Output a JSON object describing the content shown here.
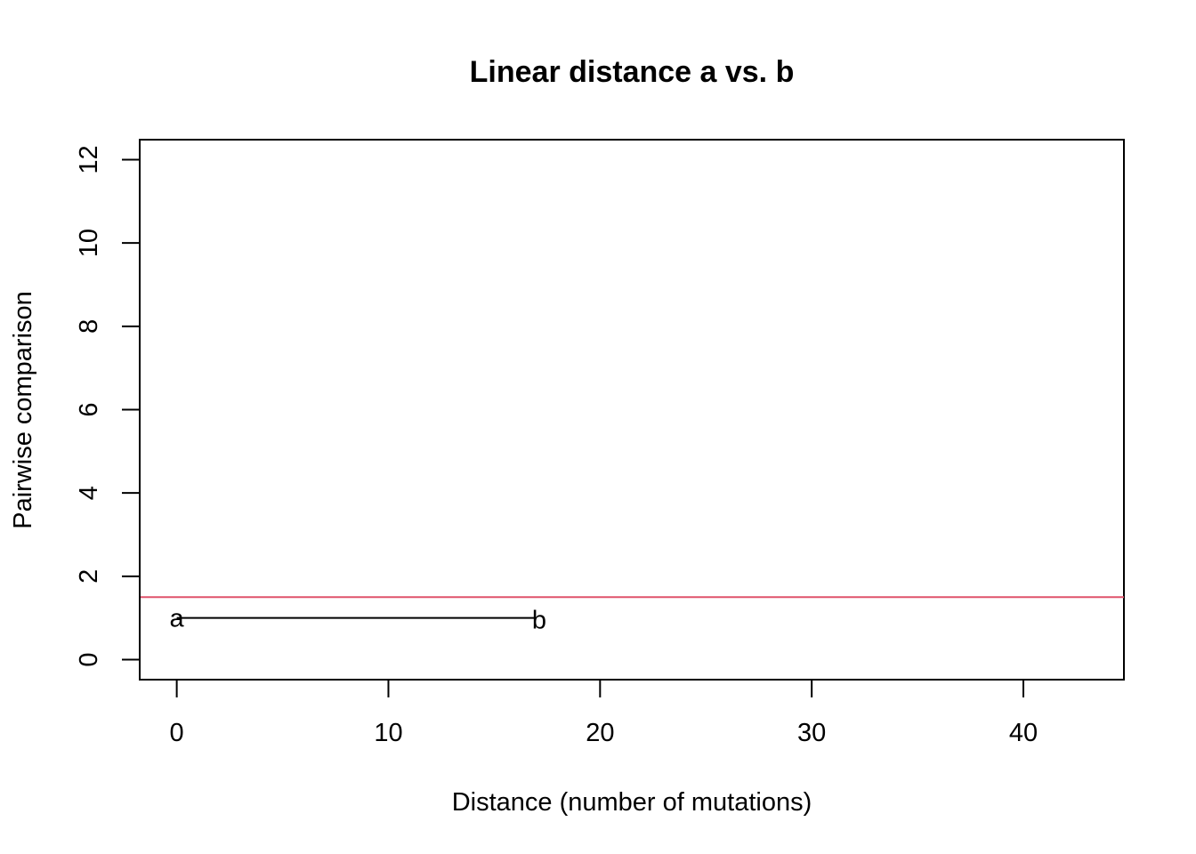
{
  "chart_data": {
    "type": "line",
    "title": "Linear distance a vs. b",
    "xlabel": "Distance (number of mutations)",
    "ylabel": "Pairwise comparison",
    "xlim": [
      -1.75,
      44.75
    ],
    "ylim": [
      -0.48,
      12.48
    ],
    "x_ticks": [
      0,
      10,
      20,
      30,
      40
    ],
    "y_ticks": [
      0,
      2,
      4,
      6,
      8,
      10,
      12
    ],
    "grid": false,
    "segments": [
      {
        "x0": 0,
        "y0": 1,
        "x1": 17,
        "y1": 1,
        "color": "#000000",
        "start_label": "a",
        "end_label": "b"
      }
    ],
    "hlines": [
      {
        "y": 1.5,
        "color": "#DF536B"
      }
    ]
  }
}
